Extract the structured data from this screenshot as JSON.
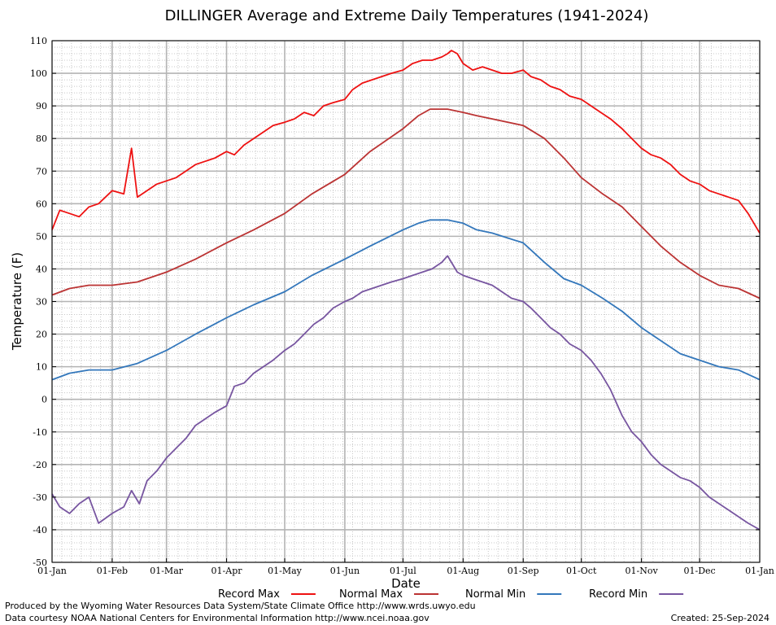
{
  "chart_data": {
    "type": "line",
    "title": "DILLINGER Average and Extreme Daily Temperatures (1941-2024)",
    "xlabel": "Date",
    "ylabel": "Temperature (F)",
    "ylim": [
      -50,
      110
    ],
    "yticks": [
      -50,
      -40,
      -30,
      -20,
      -10,
      0,
      10,
      20,
      30,
      40,
      50,
      60,
      70,
      80,
      90,
      100,
      110
    ],
    "x_tick_labels": [
      "01-Jan",
      "01-Feb",
      "01-Mar",
      "01-Apr",
      "01-May",
      "01-Jun",
      "01-Jul",
      "01-Aug",
      "01-Sep",
      "01-Oct",
      "01-Nov",
      "01-Dec",
      "01-Jan"
    ],
    "grid": true,
    "legend_position": "bottom",
    "x_unit": "day of year",
    "xlim": [
      1,
      366
    ],
    "series": [
      {
        "name": "Record Max",
        "color": "#ee1111",
        "x": [
          1,
          5,
          10,
          15,
          20,
          25,
          32,
          38,
          42,
          45,
          50,
          55,
          60,
          65,
          70,
          75,
          80,
          85,
          91,
          95,
          100,
          105,
          110,
          115,
          121,
          126,
          131,
          136,
          141,
          146,
          152,
          156,
          161,
          166,
          171,
          176,
          182,
          187,
          192,
          197,
          202,
          205,
          207,
          210,
          213,
          218,
          223,
          228,
          233,
          238,
          244,
          248,
          253,
          258,
          263,
          268,
          274,
          279,
          284,
          289,
          295,
          300,
          305,
          310,
          315,
          320,
          325,
          330,
          335,
          340,
          345,
          350,
          355,
          360,
          366
        ],
        "values": [
          52,
          58,
          57,
          56,
          59,
          60,
          64,
          63,
          77,
          62,
          64,
          66,
          67,
          68,
          70,
          72,
          73,
          74,
          76,
          75,
          78,
          80,
          82,
          84,
          85,
          86,
          88,
          87,
          90,
          91,
          92,
          95,
          97,
          98,
          99,
          100,
          101,
          103,
          104,
          104,
          105,
          106,
          107,
          106,
          103,
          101,
          102,
          101,
          100,
          100,
          101,
          99,
          98,
          96,
          95,
          93,
          92,
          90,
          88,
          86,
          83,
          80,
          77,
          75,
          74,
          72,
          69,
          67,
          66,
          64,
          63,
          62,
          61,
          57,
          51
        ]
      },
      {
        "name": "Normal Max",
        "color": "#bb3333",
        "x": [
          1,
          10,
          20,
          32,
          45,
          60,
          75,
          91,
          105,
          121,
          135,
          152,
          165,
          182,
          190,
          196,
          205,
          213,
          220,
          228,
          244,
          255,
          265,
          274,
          285,
          295,
          305,
          315,
          325,
          335,
          345,
          355,
          366
        ],
        "values": [
          32,
          34,
          35,
          35,
          36,
          39,
          43,
          48,
          52,
          57,
          63,
          69,
          76,
          83,
          87,
          89,
          89,
          88,
          87,
          86,
          84,
          80,
          74,
          68,
          63,
          59,
          53,
          47,
          42,
          38,
          35,
          34,
          31
        ]
      },
      {
        "name": "Normal Min",
        "color": "#3377bb",
        "x": [
          1,
          10,
          20,
          32,
          45,
          60,
          75,
          91,
          105,
          121,
          135,
          152,
          165,
          182,
          190,
          196,
          205,
          213,
          220,
          228,
          244,
          255,
          265,
          274,
          285,
          295,
          305,
          315,
          325,
          335,
          345,
          355,
          366
        ],
        "values": [
          6,
          8,
          9,
          9,
          11,
          15,
          20,
          25,
          29,
          33,
          38,
          43,
          47,
          52,
          54,
          55,
          55,
          54,
          52,
          51,
          48,
          42,
          37,
          35,
          31,
          27,
          22,
          18,
          14,
          12,
          10,
          9,
          6
        ]
      },
      {
        "name": "Record Min",
        "color": "#7755a0",
        "x": [
          1,
          5,
          10,
          15,
          20,
          25,
          32,
          38,
          42,
          46,
          50,
          55,
          60,
          65,
          70,
          75,
          80,
          85,
          91,
          95,
          100,
          105,
          110,
          115,
          121,
          126,
          131,
          136,
          141,
          146,
          152,
          156,
          161,
          166,
          171,
          176,
          182,
          187,
          192,
          197,
          202,
          205,
          207,
          210,
          213,
          218,
          223,
          228,
          233,
          238,
          244,
          248,
          253,
          258,
          263,
          268,
          274,
          279,
          284,
          289,
          295,
          300,
          305,
          310,
          315,
          320,
          325,
          330,
          335,
          340,
          345,
          350,
          355,
          360,
          366
        ],
        "values": [
          -29,
          -33,
          -35,
          -32,
          -30,
          -38,
          -35,
          -33,
          -28,
          -32,
          -25,
          -22,
          -18,
          -15,
          -12,
          -8,
          -6,
          -4,
          -2,
          4,
          5,
          8,
          10,
          12,
          15,
          17,
          20,
          23,
          25,
          28,
          30,
          31,
          33,
          34,
          35,
          36,
          37,
          38,
          39,
          40,
          42,
          44,
          42,
          39,
          38,
          37,
          36,
          35,
          33,
          31,
          30,
          28,
          25,
          22,
          20,
          17,
          15,
          12,
          8,
          3,
          -5,
          -10,
          -13,
          -17,
          -20,
          -22,
          -24,
          -25,
          -27,
          -30,
          -32,
          -34,
          -36,
          -38,
          -40
        ]
      }
    ]
  },
  "footer": {
    "produced_by": "Produced by the Wyoming Water Resources Data System/State Climate Office http://www.wrds.uwyo.edu",
    "courtesy": "Data courtesy NOAA National Centers for Environmental Information http://www.ncei.noaa.gov",
    "created": "Created:  25-Sep-2024"
  }
}
